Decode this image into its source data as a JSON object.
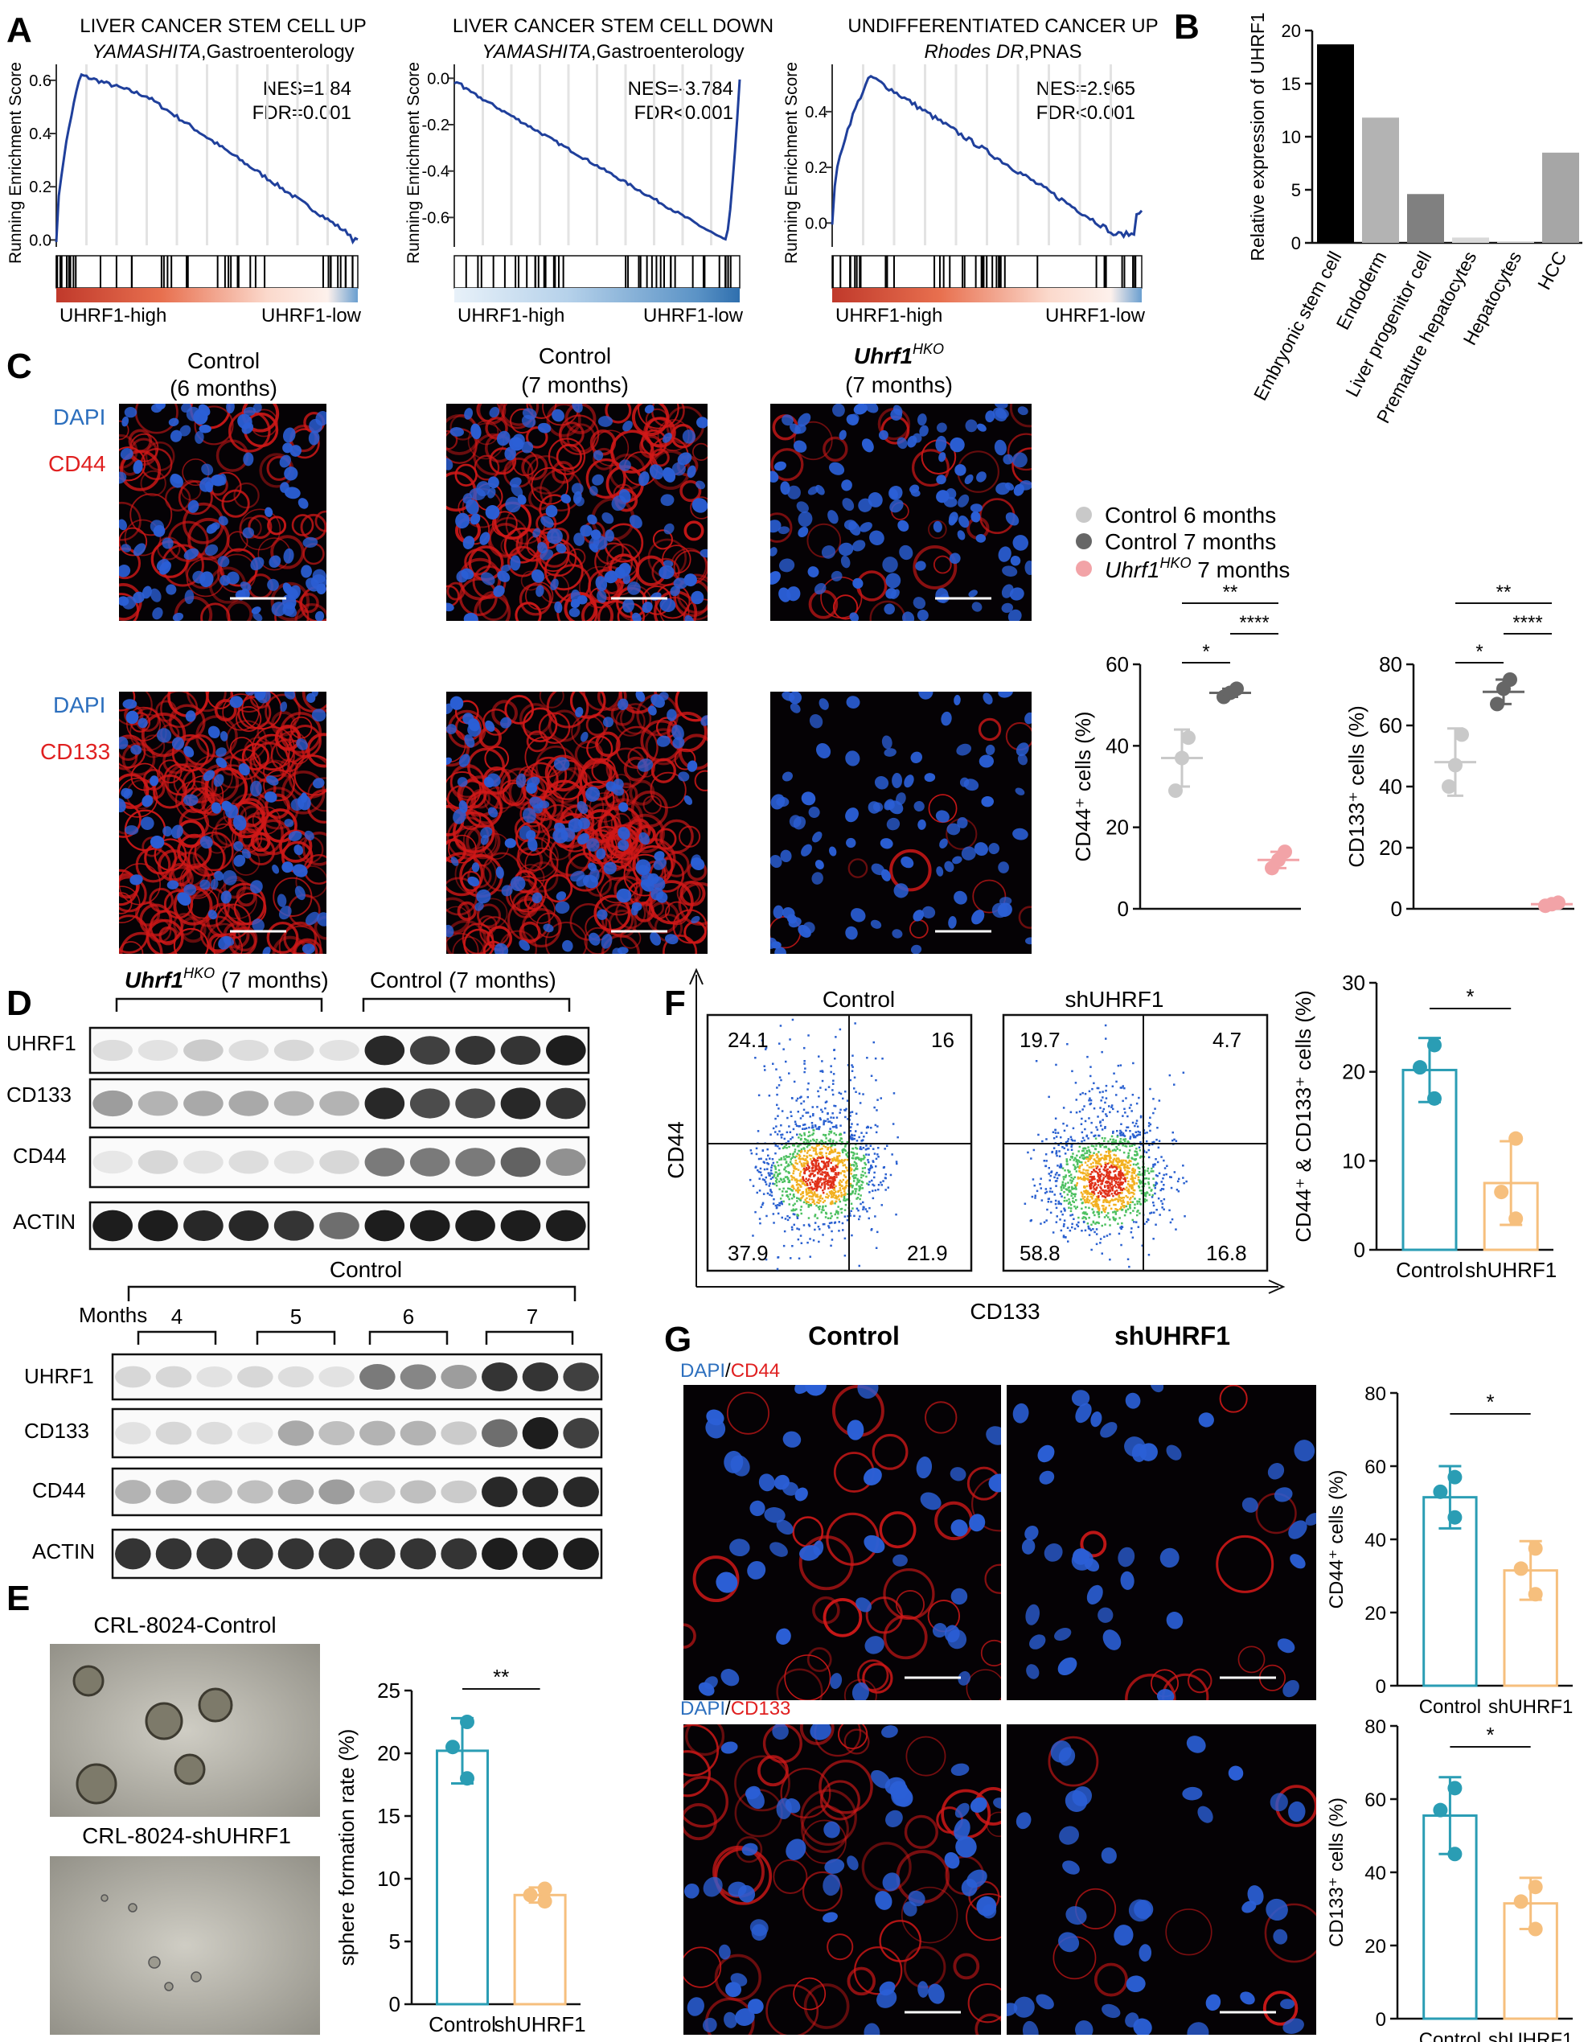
{
  "panels": {
    "A": "A",
    "B": "B",
    "C": "C",
    "D": "D",
    "E": "E",
    "F": "F",
    "G": "G"
  },
  "gsea": [
    {
      "title": "LIVER CANCER STEM CELL UP",
      "subtitle_italic": "YAMASHITA",
      "subtitle_rest": ",Gastroenterology",
      "nes": "NES=1.84",
      "fdr": "FDR=0.001",
      "ylabel": "Running Enrichment Score",
      "yticks": [
        "0.6",
        "0.4",
        "0.2",
        "0.0"
      ],
      "left_label": "UHRF1-high",
      "right_label": "UHRF1-low"
    },
    {
      "title": "LIVER CANCER STEM CELL DOWN",
      "subtitle_italic": "YAMASHITA",
      "subtitle_rest": ",Gastroenterology",
      "nes": "NES=-3.784",
      "fdr": "FDR<0.001",
      "ylabel": "Running Enrichment Score",
      "yticks": [
        "0.0",
        "-0.2",
        "-0.4",
        "-0.6"
      ],
      "left_label": "UHRF1-high",
      "right_label": "UHRF1-low"
    },
    {
      "title": "UNDIFFERENTIATED CANCER UP",
      "subtitle_italic": "Rhodes DR",
      "subtitle_rest": ",PNAS",
      "nes": "NES=2.965",
      "fdr": "FDR<0.001",
      "ylabel": "Running Enrichment Score",
      "yticks": [
        "0.4",
        "0.2",
        "0.0"
      ],
      "left_label": "UHRF1-high",
      "right_label": "UHRF1-low"
    }
  ],
  "chart_data": [
    {
      "type": "bar",
      "panel": "B",
      "ylabel": "Relative expression of UHRF1",
      "ylim": [
        0,
        20
      ],
      "yticks": [
        "20",
        "15",
        "10",
        "5",
        "0"
      ],
      "categories": [
        "Embryonic stem cell",
        "Endoderm",
        "Liver progenitor cell",
        "Premature hepatocytes",
        "Hepatocytes",
        "HCC"
      ],
      "values": [
        18.7,
        11.8,
        4.6,
        0.5,
        0.15,
        8.5
      ],
      "colors": [
        "#000000",
        "#b3b3b3",
        "#808080",
        "#d9d9d9",
        "#d9d9d9",
        "#a6a6a6"
      ]
    },
    {
      "type": "scatter",
      "panel": "C-CD44",
      "ylabel": "CD44⁺ cells (%)",
      "ylim": [
        0,
        60
      ],
      "yticks": [
        "60",
        "40",
        "20",
        "0"
      ],
      "groups": [
        {
          "name": "Control 6 months",
          "points": [
            29,
            37,
            42
          ],
          "mean": 37,
          "sd": 7
        },
        {
          "name": "Control 7 months",
          "points": [
            52,
            53,
            54
          ],
          "mean": 53,
          "sd": 1
        },
        {
          "name": "Uhrf1HKO 7 months",
          "points": [
            10,
            12,
            14
          ],
          "mean": 12,
          "sd": 2
        }
      ],
      "sig": [
        "*",
        "****",
        "**"
      ]
    },
    {
      "type": "scatter",
      "panel": "C-CD133",
      "ylabel": "CD133⁺ cells (%)",
      "ylim": [
        0,
        80
      ],
      "yticks": [
        "80",
        "60",
        "40",
        "20",
        "0"
      ],
      "groups": [
        {
          "name": "Control 6 months",
          "points": [
            40,
            47,
            57
          ],
          "mean": 48,
          "sd": 11
        },
        {
          "name": "Control 7 months",
          "points": [
            67,
            72,
            75
          ],
          "mean": 71,
          "sd": 4
        },
        {
          "name": "Uhrf1HKO 7 months",
          "points": [
            1,
            1.5,
            2
          ],
          "mean": 1.5,
          "sd": 0.5
        }
      ],
      "sig": [
        "*",
        "****",
        "**"
      ]
    },
    {
      "type": "bar",
      "panel": "E",
      "ylabel": "sphere formation rate (%)",
      "ylim": [
        0,
        25
      ],
      "yticks": [
        "25",
        "20",
        "15",
        "10",
        "5",
        "0"
      ],
      "categories": [
        "Control",
        "shUHRF1"
      ],
      "values": [
        20.2,
        8.7
      ],
      "sd": [
        2.6,
        0.6
      ],
      "points": [
        [
          18,
          20.5,
          22.5
        ],
        [
          8.2,
          8.7,
          9.2
        ]
      ],
      "sig": "**"
    },
    {
      "type": "bar",
      "panel": "F",
      "ylabel": "CD44⁺ & CD133⁺ cells (%)",
      "ylim": [
        0,
        30
      ],
      "yticks": [
        "30",
        "20",
        "10",
        "0"
      ],
      "categories": [
        "Control",
        "shUHRF1"
      ],
      "values": [
        20.2,
        7.5
      ],
      "sd": [
        3.6,
        4.7
      ],
      "points": [
        [
          17,
          20.5,
          23
        ],
        [
          3.5,
          6.5,
          12.5
        ]
      ],
      "sig": "*"
    },
    {
      "type": "bar",
      "panel": "G-CD44",
      "ylabel": "CD44⁺ cells (%)",
      "ylim": [
        0,
        80
      ],
      "yticks": [
        "80",
        "60",
        "40",
        "20",
        "0"
      ],
      "categories": [
        "Control",
        "shUHRF1"
      ],
      "values": [
        51.5,
        31.5
      ],
      "sd": [
        8.5,
        8
      ],
      "points": [
        [
          46,
          53,
          57
        ],
        [
          25,
          32,
          37.5
        ]
      ],
      "sig": "*"
    },
    {
      "type": "bar",
      "panel": "G-CD133",
      "ylabel": "CD133⁺ cells (%)",
      "ylim": [
        0,
        80
      ],
      "yticks": [
        "80",
        "60",
        "40",
        "20",
        "0"
      ],
      "categories": [
        "Control",
        "shUHRF1"
      ],
      "values": [
        55.5,
        31.5
      ],
      "sd": [
        10.5,
        7
      ],
      "points": [
        [
          45,
          57,
          63
        ],
        [
          24.5,
          32,
          36
        ]
      ],
      "sig": "*"
    }
  ],
  "legendC": [
    {
      "label": "Control 6 months",
      "color": "#c9c9c9"
    },
    {
      "label": "Control 7 months",
      "color": "#666666"
    },
    {
      "label_italic": "Uhrf1",
      "sup": "HKO",
      "label": " 7 months",
      "color": "#f2a3a7"
    }
  ],
  "panelC": {
    "col1_title": "Control",
    "col1_sub": "(6 months)",
    "col2_title": "Control",
    "col2_sub": "(7 months)",
    "col3_title_italic": "Uhrf1",
    "col3_sup": "HKO",
    "col3_sub": "(7 months)",
    "dapi": "DAPI",
    "cd44": "CD44",
    "cd133": "CD133"
  },
  "panelD": {
    "group1_italic": "Uhrf1",
    "group1_sup": "HKO",
    "group1_rest": " (7 months)",
    "group2": "Control (7 months)",
    "rows": [
      "UHRF1",
      "CD133",
      "CD44",
      "ACTIN"
    ],
    "lower_group": "Control",
    "months_label": "Months",
    "months": [
      "4",
      "5",
      "6",
      "7"
    ]
  },
  "panelE": {
    "top_label": "CRL-8024-Control",
    "bottom_label": "CRL-8024-shUHRF1"
  },
  "panelF": {
    "title_left": "Control",
    "title_right": "shUHRF1",
    "xlabel": "CD133",
    "ylabel": "CD44",
    "q_left": [
      "24.1",
      "16",
      "37.9",
      "21.9"
    ],
    "q_right": [
      "19.7",
      "4.7",
      "58.8",
      "16.8"
    ]
  },
  "panelG": {
    "col1": "Control",
    "col2": "shUHRF1",
    "dapi": "DAPI",
    "slash": "/",
    "cd44": "CD44",
    "cd133": "CD133"
  }
}
